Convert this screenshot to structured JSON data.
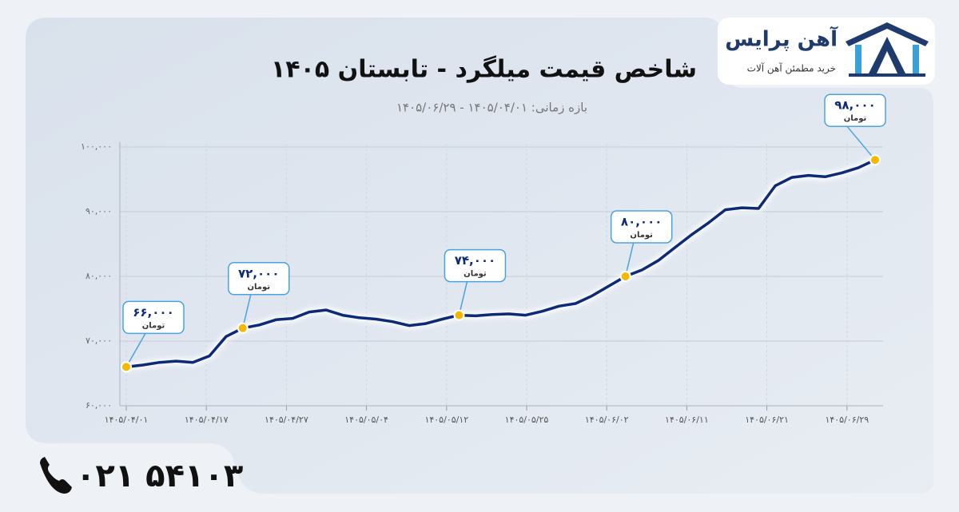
{
  "brand": {
    "name": "آهن پرایس",
    "tagline": "خرید مطمئن آهن آلات"
  },
  "contact": {
    "phone": "۰۲۱ ۵۴۱۰۳"
  },
  "chart_data": {
    "type": "line",
    "title": "شاخص قیمت میلگرد - تابستان ۱۴۰۵",
    "subtitle": "بازه زمانی: ۱۴۰۵/۰۴/۰۱ - ۱۴۰۵/۰۶/۲۹",
    "x_tick_labels": [
      "۱۴۰۵/۰۴/۰۱",
      "۱۴۰۵/۰۴/۱۷",
      "۱۴۰۵/۰۴/۲۷",
      "۱۴۰۵/۰۵/۰۴",
      "۱۴۰۵/۰۵/۱۲",
      "۱۴۰۵/۰۵/۲۵",
      "۱۴۰۵/۰۶/۰۲",
      "۱۴۰۵/۰۶/۱۱",
      "۱۴۰۵/۰۶/۲۱",
      "۱۴۰۵/۰۶/۲۹"
    ],
    "ylim": [
      60000,
      100000
    ],
    "yticks": [
      {
        "value": 60000,
        "label": "۶۰,۰۰۰"
      },
      {
        "value": 70000,
        "label": "۷۰,۰۰۰"
      },
      {
        "value": 80000,
        "label": "۸۰,۰۰۰"
      },
      {
        "value": 90000,
        "label": "۹۰,۰۰۰"
      },
      {
        "value": 100000,
        "label": "۱۰۰,۰۰۰"
      }
    ],
    "grid": true,
    "series": [
      {
        "color": "#0d2a78",
        "values": [
          66000,
          66300,
          66700,
          66900,
          66700,
          67700,
          70700,
          72000,
          72500,
          73300,
          73500,
          74500,
          74800,
          74000,
          73600,
          73400,
          73000,
          72400,
          72700,
          73400,
          74000,
          73900,
          74100,
          74200,
          74000,
          74600,
          75400,
          75800,
          77000,
          78500,
          80000,
          81000,
          82500,
          84500,
          86500,
          88300,
          90300,
          90600,
          90500,
          94000,
          95300,
          95600,
          95400,
          96000,
          96800,
          98000
        ]
      }
    ],
    "annotations": [
      {
        "point": 0,
        "label": "۶۶,۰۰۰",
        "unit": "تومان"
      },
      {
        "point": 7,
        "label": "۷۲,۰۰۰",
        "unit": "تومان"
      },
      {
        "point": 20,
        "label": "۷۴,۰۰۰",
        "unit": "تومان"
      },
      {
        "point": 30,
        "label": "۸۰,۰۰۰",
        "unit": "تومان"
      },
      {
        "point": 45,
        "label": "۹۸,۰۰۰",
        "unit": "تومان"
      }
    ]
  }
}
